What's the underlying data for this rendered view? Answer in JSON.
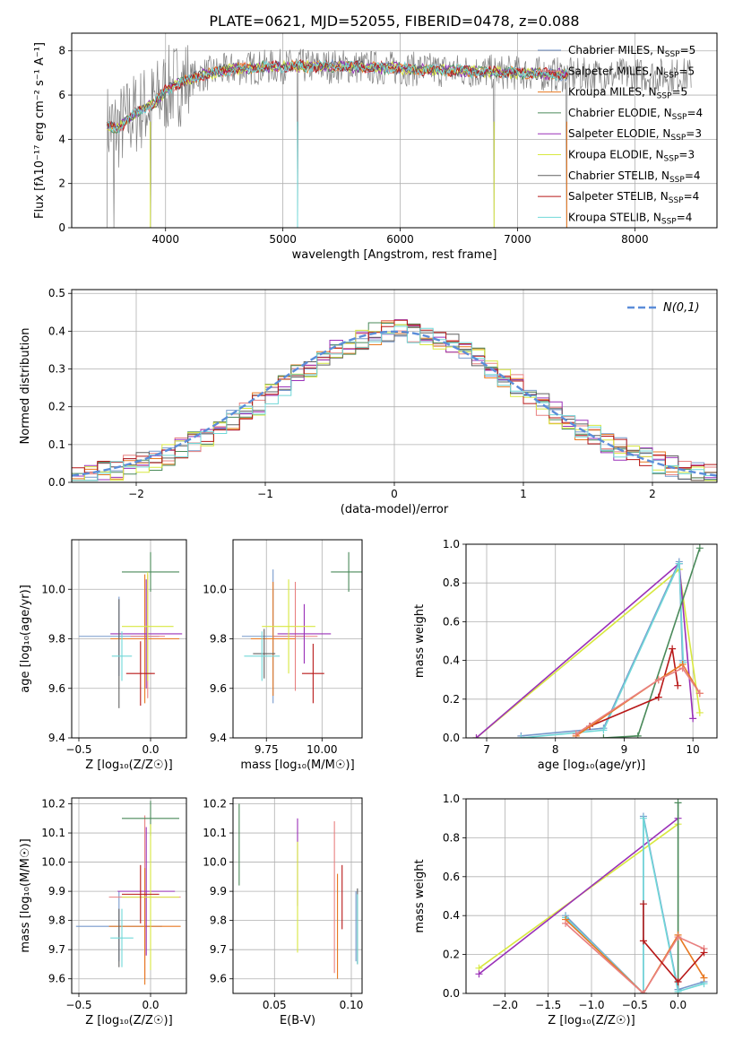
{
  "figure": {
    "title": "PLATE=0621, MJD=52055, FIBERID=0478, z=0.088"
  },
  "colors": {
    "chabrier_miles": "#7799cc",
    "salpeter_miles": "#e88080",
    "kroupa_miles": "#e87820",
    "chabrier_elodie": "#4a8a5a",
    "salpeter_elodie": "#9a30b8",
    "kroupa_elodie": "#d8e840",
    "chabrier_stelib": "#606060",
    "salpeter_stelib": "#b81818",
    "kroupa_stelib": "#70d8d8"
  },
  "legend": [
    {
      "key": "chabrier_miles",
      "name": "Chabrier MILES",
      "nssp": "5"
    },
    {
      "key": "salpeter_miles",
      "name": "Salpeter MILES",
      "nssp": "5"
    },
    {
      "key": "kroupa_miles",
      "name": "Kroupa MILES",
      "nssp": "5"
    },
    {
      "key": "chabrier_elodie",
      "name": "Chabrier ELODIE",
      "nssp": "4"
    },
    {
      "key": "salpeter_elodie",
      "name": "Salpeter ELODIE",
      "nssp": "3"
    },
    {
      "key": "kroupa_elodie",
      "name": "Kroupa ELODIE",
      "nssp": "3"
    },
    {
      "key": "chabrier_stelib",
      "name": "Chabrier STELIB",
      "nssp": "4"
    },
    {
      "key": "salpeter_stelib",
      "name": "Salpeter STELIB",
      "nssp": "4"
    },
    {
      "key": "kroupa_stelib",
      "name": "Kroupa STELIB",
      "nssp": "4"
    }
  ],
  "chart_data": [
    {
      "id": "spectrum",
      "type": "line",
      "xlabel": "wavelength [Angstrom, rest frame]",
      "ylabel": "Flux [fλ10⁻¹⁷ erg cm⁻² s⁻¹ A⁻¹]",
      "xlim": [
        3200,
        8700
      ],
      "ylim": [
        0,
        8.8
      ],
      "xticks": [
        4000,
        5000,
        6000,
        7000,
        8000
      ],
      "yticks": [
        0,
        2,
        4,
        6,
        8
      ],
      "continuum": {
        "x": [
          3500,
          3600,
          3700,
          3800,
          3900,
          4000,
          4100,
          4300,
          4600,
          5000,
          5500,
          6000,
          6500,
          7000,
          7500,
          8000,
          8500
        ],
        "y": [
          4.6,
          4.5,
          5.0,
          5.4,
          5.6,
          6.2,
          6.5,
          6.9,
          7.2,
          7.3,
          7.3,
          7.2,
          7.1,
          7.0,
          6.9,
          6.9,
          6.9
        ]
      },
      "data_spikes": [
        3500,
        3560,
        3870,
        5125,
        6800,
        7420
      ],
      "model_wavelength_range": [
        3500,
        7430
      ]
    },
    {
      "id": "residuals",
      "type": "step",
      "xlabel": "(data-model)/error",
      "ylabel": "Normed distribution",
      "xlim": [
        -2.5,
        2.5
      ],
      "ylim": [
        0,
        0.51
      ],
      "xticks": [
        -2,
        -1,
        0,
        1,
        2
      ],
      "yticks": [
        0.0,
        0.1,
        0.2,
        0.3,
        0.4,
        0.5
      ],
      "legend_label": "N(0,1)",
      "bin_width": 0.1,
      "bin_start": -2.5,
      "counts_mean": [
        0.018,
        0.022,
        0.028,
        0.035,
        0.042,
        0.051,
        0.062,
        0.074,
        0.088,
        0.104,
        0.122,
        0.141,
        0.162,
        0.184,
        0.207,
        0.232,
        0.256,
        0.281,
        0.305,
        0.328,
        0.349,
        0.367,
        0.382,
        0.393,
        0.399,
        0.402,
        0.399,
        0.393,
        0.382,
        0.367,
        0.349,
        0.328,
        0.305,
        0.281,
        0.256,
        0.232,
        0.207,
        0.184,
        0.162,
        0.141,
        0.122,
        0.104,
        0.088,
        0.074,
        0.062,
        0.051,
        0.042,
        0.035,
        0.028,
        0.022
      ]
    },
    {
      "id": "age-vs-Z",
      "type": "errorbar",
      "xlabel": "Z [log₁₀(Z/Z☉)]",
      "ylabel": "age  [log₁₀(age/yr)]",
      "xlim": [
        -0.55,
        0.25
      ],
      "ylim": [
        9.4,
        10.2
      ],
      "xticks": [
        -0.5,
        0.0
      ],
      "yticks": [
        9.4,
        9.6,
        9.8,
        10.0
      ],
      "points": [
        {
          "key": "chabrier_miles",
          "x": -0.22,
          "xerr": 0.28,
          "y": 9.81,
          "yerr": 0.16
        },
        {
          "key": "salpeter_miles",
          "x": -0.02,
          "xerr": 0.12,
          "y": 9.81,
          "yerr": 0.25
        },
        {
          "key": "kroupa_miles",
          "x": -0.04,
          "xerr": 0.24,
          "y": 9.8,
          "yerr": 0.26
        },
        {
          "key": "chabrier_elodie",
          "x": 0.0,
          "xerr": 0.2,
          "y": 10.07,
          "yerr": 0.08
        },
        {
          "key": "salpeter_elodie",
          "x": -0.03,
          "xerr": 0.25,
          "y": 9.82,
          "yerr": 0.22
        },
        {
          "key": "kroupa_elodie",
          "x": -0.02,
          "xerr": 0.18,
          "y": 9.85,
          "yerr": 0.22
        },
        {
          "key": "chabrier_stelib",
          "x": -0.22,
          "xerr": 0.0,
          "y": 9.74,
          "yerr": 0.22
        },
        {
          "key": "salpeter_stelib",
          "x": -0.07,
          "xerr": 0.1,
          "y": 9.66,
          "yerr": 0.13
        },
        {
          "key": "kroupa_stelib",
          "x": -0.2,
          "xerr": 0.07,
          "y": 9.73,
          "yerr": 0.1
        }
      ]
    },
    {
      "id": "age-vs-mass",
      "type": "errorbar",
      "xlabel": "mass [log₁₀(M/M☉)]",
      "ylabel": "",
      "xlim": [
        9.6,
        10.18
      ],
      "ylim": [
        9.4,
        10.2
      ],
      "xticks": [
        9.75,
        10.0
      ],
      "yticks": [
        9.4,
        9.6,
        9.8,
        10.0
      ],
      "points": [
        {
          "key": "chabrier_miles",
          "x": 9.78,
          "xerr": 0.14,
          "y": 9.81,
          "yerr": 0.27
        },
        {
          "key": "salpeter_miles",
          "x": 9.88,
          "xerr": 0.1,
          "y": 9.81,
          "yerr": 0.22
        },
        {
          "key": "kroupa_miles",
          "x": 9.78,
          "xerr": 0.1,
          "y": 9.8,
          "yerr": 0.23
        },
        {
          "key": "chabrier_elodie",
          "x": 10.12,
          "xerr": 0.08,
          "y": 10.07,
          "yerr": 0.08
        },
        {
          "key": "salpeter_elodie",
          "x": 9.92,
          "xerr": 0.12,
          "y": 9.82,
          "yerr": 0.12
        },
        {
          "key": "kroupa_elodie",
          "x": 9.85,
          "xerr": 0.12,
          "y": 9.85,
          "yerr": 0.19
        },
        {
          "key": "chabrier_stelib",
          "x": 9.74,
          "xerr": 0.05,
          "y": 9.74,
          "yerr": 0.1
        },
        {
          "key": "salpeter_stelib",
          "x": 9.96,
          "xerr": 0.05,
          "y": 9.66,
          "yerr": 0.12
        },
        {
          "key": "kroupa_stelib",
          "x": 9.73,
          "xerr": 0.08,
          "y": 9.73,
          "yerr": 0.1
        }
      ]
    },
    {
      "id": "weight-vs-age",
      "type": "line",
      "xlabel": "age  [log₁₀(age/yr)]",
      "ylabel": "mass weight",
      "xlim": [
        6.7,
        10.35
      ],
      "ylim": [
        0,
        1.0
      ],
      "xticks": [
        7,
        8,
        9,
        10
      ],
      "yticks": [
        0.0,
        0.2,
        0.4,
        0.6,
        0.8,
        1.0
      ],
      "series": [
        {
          "key": "kroupa_elodie",
          "x": [
            6.85,
            9.8,
            10.1
          ],
          "y": [
            0.0,
            0.87,
            0.13
          ]
        },
        {
          "key": "salpeter_elodie",
          "x": [
            6.85,
            9.8,
            10.0
          ],
          "y": [
            0.0,
            0.9,
            0.1
          ]
        },
        {
          "key": "chabrier_miles",
          "x": [
            7.5,
            8.7,
            9.8,
            9.85
          ],
          "y": [
            0.01,
            0.05,
            0.91,
            0.4
          ]
        },
        {
          "key": "kroupa_stelib",
          "x": [
            7.5,
            8.7,
            9.8,
            9.86
          ],
          "y": [
            0.0,
            0.04,
            0.9,
            0.39
          ]
        },
        {
          "key": "chabrier_elodie",
          "x": [
            8.7,
            9.2,
            10.1
          ],
          "y": [
            0.0,
            0.01,
            0.98
          ]
        },
        {
          "key": "salpeter_stelib",
          "x": [
            8.5,
            9.5,
            9.7,
            9.78
          ],
          "y": [
            0.06,
            0.21,
            0.46,
            0.27
          ]
        },
        {
          "key": "kroupa_miles",
          "x": [
            8.3,
            9.5,
            9.85,
            10.1
          ],
          "y": [
            0.01,
            0.3,
            0.38,
            0.23
          ]
        },
        {
          "key": "salpeter_miles",
          "x": [
            8.3,
            9.5,
            9.85,
            10.1
          ],
          "y": [
            0.02,
            0.3,
            0.36,
            0.23
          ]
        }
      ]
    },
    {
      "id": "mass-vs-Z",
      "type": "errorbar",
      "xlabel": "Z [log₁₀(Z/Z☉)]",
      "ylabel": "mass [log₁₀(M/M☉)]",
      "xlim": [
        -0.55,
        0.25
      ],
      "ylim": [
        9.55,
        10.22
      ],
      "xticks": [
        -0.5,
        0.0
      ],
      "yticks": [
        9.6,
        9.7,
        9.8,
        9.9,
        10.0,
        10.1,
        10.2
      ],
      "points": [
        {
          "key": "chabrier_miles",
          "x": -0.22,
          "xerr": 0.3,
          "y": 9.78,
          "yerr": 0.12
        },
        {
          "key": "salpeter_miles",
          "x": -0.04,
          "xerr": 0.25,
          "y": 9.88,
          "yerr": 0.28
        },
        {
          "key": "kroupa_miles",
          "x": -0.04,
          "xerr": 0.25,
          "y": 9.78,
          "yerr": 0.2
        },
        {
          "key": "chabrier_elodie",
          "x": 0.0,
          "xerr": 0.2,
          "y": 10.15,
          "yerr": 0.06
        },
        {
          "key": "salpeter_elodie",
          "x": -0.03,
          "xerr": 0.2,
          "y": 9.9,
          "yerr": 0.22
        },
        {
          "key": "kroupa_elodie",
          "x": 0.0,
          "xerr": 0.2,
          "y": 9.88,
          "yerr": 0.25
        },
        {
          "key": "chabrier_stelib",
          "x": -0.22,
          "xerr": 0.0,
          "y": 9.74,
          "yerr": 0.1
        },
        {
          "key": "salpeter_stelib",
          "x": -0.07,
          "xerr": 0.13,
          "y": 9.89,
          "yerr": 0.1
        },
        {
          "key": "kroupa_stelib",
          "x": -0.2,
          "xerr": 0.08,
          "y": 9.74,
          "yerr": 0.1
        }
      ]
    },
    {
      "id": "mass-vs-ebv",
      "type": "errorbar",
      "xlabel": "E(B-V)",
      "ylabel": "",
      "xlim": [
        0.023,
        0.107
      ],
      "ylim": [
        9.55,
        10.22
      ],
      "xticks": [
        0.05,
        0.1
      ],
      "yticks": [
        9.6,
        9.7,
        9.8,
        9.9,
        10.0,
        10.1,
        10.2
      ],
      "points": [
        {
          "key": "chabrier_miles",
          "x": 0.103,
          "xerr": 0.0,
          "y": 9.78,
          "yerr": 0.12
        },
        {
          "key": "salpeter_miles",
          "x": 0.089,
          "xerr": 0.0,
          "y": 9.88,
          "yerr": 0.26
        },
        {
          "key": "kroupa_miles",
          "x": 0.091,
          "xerr": 0.0,
          "y": 9.78,
          "yerr": 0.18
        },
        {
          "key": "chabrier_elodie",
          "x": 0.027,
          "xerr": 0.0,
          "y": 10.06,
          "yerr": 0.14
        },
        {
          "key": "salpeter_elodie",
          "x": 0.065,
          "xerr": 0.0,
          "y": 10.0,
          "yerr": 0.15
        },
        {
          "key": "kroupa_elodie",
          "x": 0.065,
          "xerr": 0.0,
          "y": 9.88,
          "yerr": 0.19
        },
        {
          "key": "chabrier_stelib",
          "x": 0.104,
          "xerr": 0.0,
          "y": 9.78,
          "yerr": 0.13
        },
        {
          "key": "salpeter_stelib",
          "x": 0.094,
          "xerr": 0.0,
          "y": 9.88,
          "yerr": 0.11
        },
        {
          "key": "kroupa_stelib",
          "x": 0.104,
          "xerr": 0.0,
          "y": 9.77,
          "yerr": 0.12
        }
      ]
    },
    {
      "id": "weight-vs-Z",
      "type": "line",
      "xlabel": "Z [log₁₀(Z/Z☉)]",
      "ylabel": "mass weight",
      "xlim": [
        -2.45,
        0.45
      ],
      "ylim": [
        0,
        1.0
      ],
      "xticks": [
        -2.0,
        -1.5,
        -1.0,
        -0.5,
        0.0
      ],
      "yticks": [
        0.0,
        0.2,
        0.4,
        0.6,
        0.8,
        1.0
      ],
      "series": [
        {
          "key": "kroupa_elodie",
          "x": [
            -2.3,
            0.0
          ],
          "y": [
            0.13,
            0.87
          ]
        },
        {
          "key": "salpeter_elodie",
          "x": [
            -2.3,
            0.0
          ],
          "y": [
            0.1,
            0.9
          ]
        },
        {
          "key": "chabrier_elodie",
          "x": [
            0.0,
            0.0
          ],
          "y": [
            0.0,
            0.98
          ]
        },
        {
          "key": "chabrier_miles",
          "x": [
            -1.3,
            -0.4,
            -0.4,
            0.0,
            0.3
          ],
          "y": [
            0.4,
            0.0,
            0.91,
            0.02,
            0.06
          ]
        },
        {
          "key": "kroupa_stelib",
          "x": [
            -1.3,
            -0.4,
            -0.4,
            0.0,
            0.3
          ],
          "y": [
            0.39,
            0.0,
            0.9,
            0.01,
            0.05
          ]
        },
        {
          "key": "kroupa_miles",
          "x": [
            -1.3,
            -0.4,
            0.0,
            0.3
          ],
          "y": [
            0.38,
            0.0,
            0.3,
            0.08
          ]
        },
        {
          "key": "salpeter_miles",
          "x": [
            -1.3,
            -0.4,
            0.0,
            0.3
          ],
          "y": [
            0.36,
            0.0,
            0.29,
            0.23
          ]
        },
        {
          "key": "salpeter_stelib",
          "x": [
            -0.4,
            -0.4,
            0.0,
            0.3
          ],
          "y": [
            0.46,
            0.27,
            0.06,
            0.21
          ]
        }
      ]
    }
  ]
}
